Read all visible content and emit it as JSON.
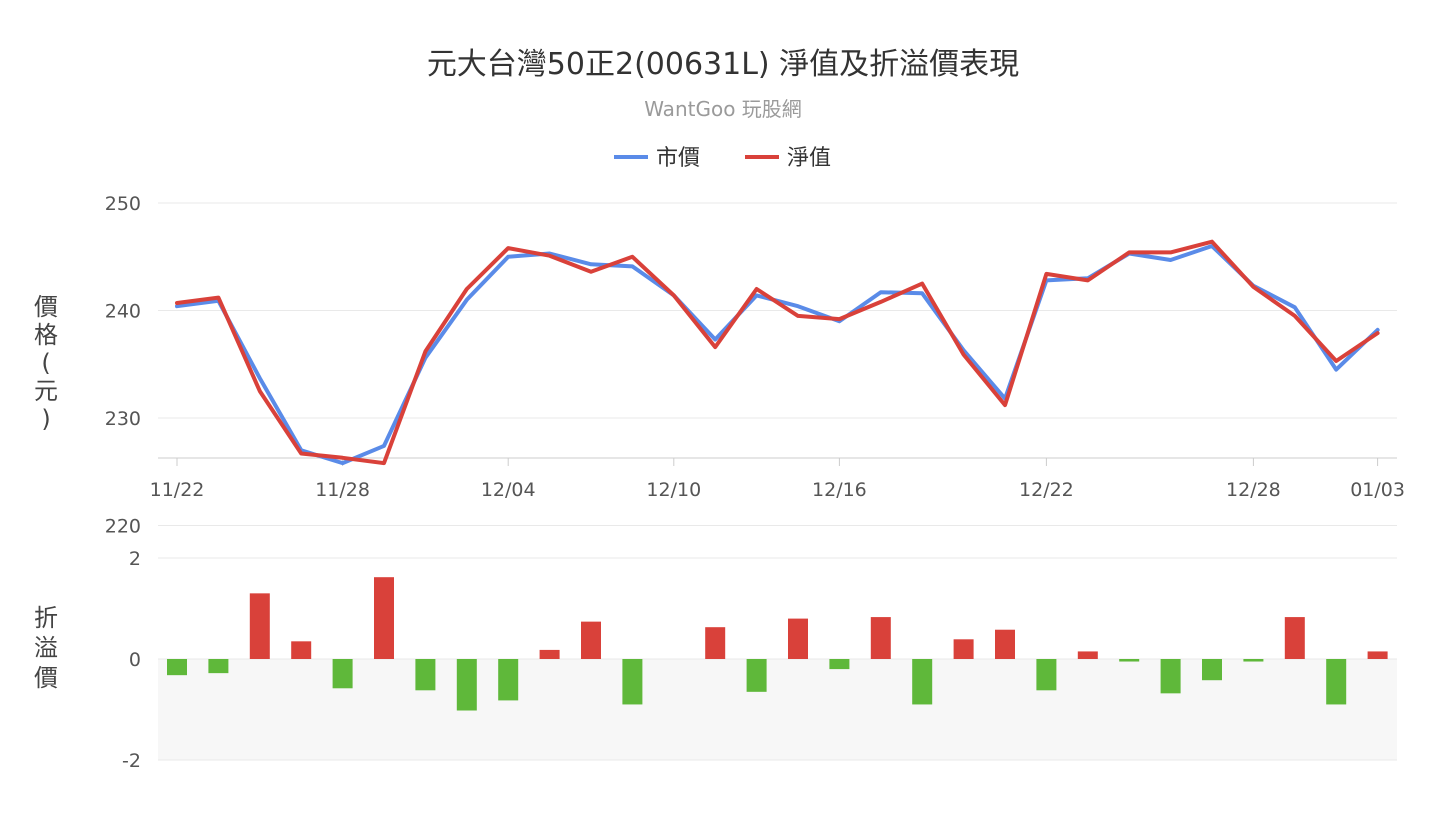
{
  "title": "元大台灣50正2(00631L) 淨值及折溢價表現",
  "subtitle": "WantGoo 玩股網",
  "legend": [
    {
      "label": "市價",
      "color": "#5a8be8"
    },
    {
      "label": "淨值",
      "color": "#d9413a"
    }
  ],
  "colors": {
    "market": "#5a8be8",
    "nav": "#d9413a",
    "premium": "#d9413a",
    "discount": "#5fb83a",
    "grid": "#e9e9e9",
    "negative_band": "#f7f7f7"
  },
  "chart_data": [
    {
      "type": "line",
      "title": "元大台灣50正2(00631L) 淨值及折溢價表現",
      "ylabel": "價格(元)",
      "ylim": [
        220,
        250
      ],
      "yticks": [
        "250",
        "240",
        "230",
        "220"
      ],
      "x_tick_labels": [
        "11/22",
        "11/28",
        "12/04",
        "12/10",
        "12/16",
        "12/22",
        "12/28",
        "01/03"
      ],
      "x_tick_index": [
        0,
        4,
        8,
        12,
        16,
        21,
        26,
        29
      ],
      "legend_position": "top-center",
      "series": [
        {
          "name": "市價",
          "values": [
            240.4,
            240.9,
            233.7,
            227.0,
            225.8,
            227.4,
            235.6,
            241.0,
            245.0,
            245.3,
            244.3,
            244.1,
            241.4,
            237.3,
            241.4,
            240.4,
            239.0,
            241.7,
            241.6,
            236.3,
            231.8,
            242.8,
            243.0,
            245.3,
            244.7,
            246.0,
            242.3,
            240.3,
            234.5,
            238.2
          ]
        },
        {
          "name": "淨值",
          "values": [
            240.7,
            241.2,
            232.5,
            226.7,
            226.3,
            225.8,
            236.2,
            242.0,
            245.8,
            245.1,
            243.6,
            245.0,
            241.4,
            236.6,
            242.0,
            239.5,
            239.2,
            240.8,
            242.5,
            235.9,
            231.2,
            243.4,
            242.8,
            245.4,
            245.4,
            246.4,
            242.2,
            239.5,
            235.3,
            237.9
          ]
        }
      ]
    },
    {
      "type": "bar",
      "ylabel": "折溢價",
      "ylim": [
        -2,
        2
      ],
      "yticks": [
        "2",
        "0",
        "-2"
      ],
      "values": [
        -0.32,
        -0.28,
        1.3,
        0.35,
        -0.58,
        1.62,
        -0.62,
        -1.02,
        -0.82,
        0.18,
        0.74,
        -0.9,
        0.0,
        0.63,
        -0.65,
        0.8,
        -0.2,
        0.83,
        -0.9,
        0.39,
        0.58,
        -0.62,
        0.15,
        -0.05,
        -0.68,
        -0.42,
        -0.05,
        0.83,
        -0.9,
        0.15
      ]
    }
  ]
}
